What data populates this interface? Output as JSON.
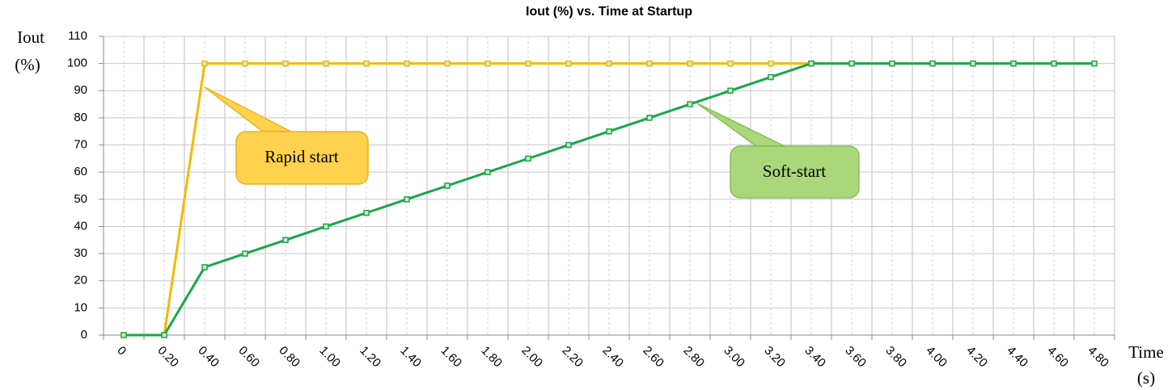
{
  "chart_data": {
    "type": "line",
    "title": "Iout (%) vs. Time at Startup",
    "y_label": [
      "Iout",
      "(%)"
    ],
    "x_label": [
      "Time",
      "(s)"
    ],
    "categories": [
      "0",
      "0.20",
      "0.40",
      "0.60",
      "0.80",
      "1.00",
      "1.20",
      "1.40",
      "1.60",
      "1.80",
      "2.00",
      "2.20",
      "2.40",
      "2.60",
      "2.80",
      "3.00",
      "3.20",
      "3.40",
      "3.60",
      "3.80",
      "4.00",
      "4.20",
      "4.40",
      "4.60",
      "4.80"
    ],
    "series": [
      {
        "name": "Rapid start",
        "color": "#f5b800",
        "values": [
          0,
          0,
          100,
          100,
          100,
          100,
          100,
          100,
          100,
          100,
          100,
          100,
          100,
          100,
          100,
          100,
          100,
          100,
          null,
          null,
          null,
          null,
          null,
          null,
          null
        ]
      },
      {
        "name": "Soft-start",
        "color": "#1aa64a",
        "values": [
          0,
          0,
          25,
          30,
          35,
          40,
          45,
          50,
          55,
          60,
          65,
          70,
          75,
          80,
          85,
          90,
          95,
          100,
          100,
          100,
          100,
          100,
          100,
          100,
          100
        ]
      }
    ],
    "ylim": [
      0,
      110
    ],
    "yticks": [
      0,
      10,
      20,
      30,
      40,
      50,
      60,
      70,
      80,
      90,
      100,
      110
    ],
    "grid": true
  }
}
